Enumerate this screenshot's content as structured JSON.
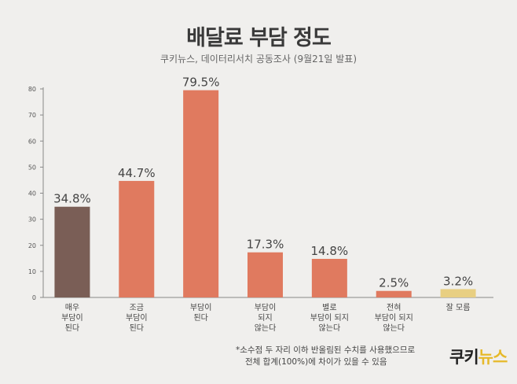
{
  "title": "배달료 부담 정도",
  "subtitle": "쿠키뉴스, 데이터리서치 공동조사 (9월21일 발표)",
  "footnote": {
    "line1": "*소수점 두 자리 이하 반올림된 수치를 사용했으므로",
    "line2": "전체 합계(100%)에 차이가 있을 수 있음"
  },
  "logo": {
    "part1": "쿠키",
    "part2": "뉴스"
  },
  "colors": {
    "very_burdened": "#7a5e56",
    "burdened": "#e07a5f",
    "dont_know": "#e8cf82",
    "axis": "#888888"
  },
  "chart_data": {
    "type": "bar",
    "title": "배달료 부담 정도",
    "categories": [
      "매우\n부담이\n된다",
      "조금\n부담이\n된다",
      "부담이\n된다",
      "부담이\n되지\n않는다",
      "별로\n부담이 되지\n않는다",
      "전혀\n부담이 되지\n않는다",
      "잘 모름"
    ],
    "values": [
      34.8,
      44.7,
      79.5,
      17.3,
      14.8,
      2.5,
      3.2
    ],
    "value_labels": [
      "34.8%",
      "44.7%",
      "79.5%",
      "17.3%",
      "14.8%",
      "2.5%",
      "3.2%"
    ],
    "bar_colors": [
      "#7a5e56",
      "#e07a5f",
      "#e07a5f",
      "#e07a5f",
      "#e07a5f",
      "#e07a5f",
      "#e8cf82"
    ],
    "ylim": [
      0,
      80
    ],
    "yticks": [
      0,
      10,
      20,
      30,
      40,
      50,
      60,
      70,
      80
    ],
    "xlabel": "",
    "ylabel": "",
    "grid": false
  }
}
